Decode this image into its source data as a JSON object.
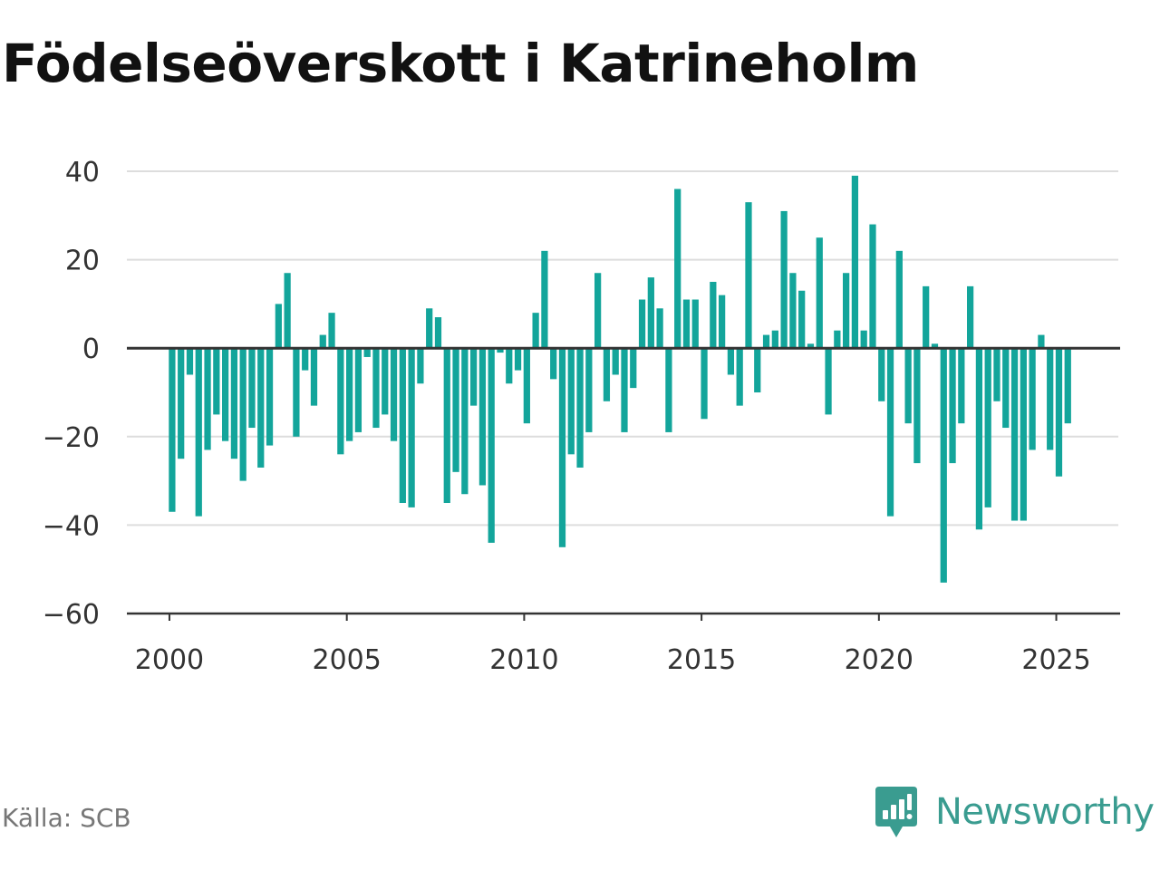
{
  "title": "Födelseöverskott i Katrineholm",
  "source": "Källa: SCB",
  "brand": {
    "name": "Newsworthy",
    "icon": "newsworthy-logo-icon",
    "color": "#3a9c90"
  },
  "chart_data": {
    "type": "bar",
    "title": "Födelseöverskott i Katrineholm",
    "xlabel": "",
    "ylabel": "",
    "ylim": [
      -60,
      40
    ],
    "xlim": [
      1998.8,
      2026.8
    ],
    "grid": true,
    "bar_color": "#13a59b",
    "y_ticks": [
      40,
      20,
      0,
      -20,
      -40,
      -60
    ],
    "y_tick_labels": [
      "40",
      "20",
      "0",
      "−20",
      "−40",
      "−60"
    ],
    "x_ticks": [
      2000,
      2005,
      2010,
      2015,
      2020,
      2025
    ],
    "x_tick_labels": [
      "2000",
      "2005",
      "2010",
      "2015",
      "2020",
      "2025"
    ],
    "series": [
      {
        "name": "",
        "x_start": "2000 kv1",
        "period": "quarter",
        "values": [
          -37,
          -25,
          -6,
          -38,
          -23,
          -15,
          -21,
          -25,
          -30,
          -18,
          -27,
          -22,
          10,
          17,
          -20,
          -5,
          -13,
          3,
          8,
          -24,
          -21,
          -19,
          -2,
          -18,
          -15,
          -21,
          -35,
          -36,
          -8,
          9,
          7,
          -35,
          -28,
          -33,
          -13,
          -31,
          -44,
          -1,
          -8,
          -5,
          -17,
          8,
          22,
          -7,
          -45,
          -24,
          -27,
          -19,
          17,
          -12,
          -6,
          -19,
          -9,
          11,
          16,
          9,
          -19,
          36,
          11,
          11,
          -16,
          15,
          12,
          -6,
          -13,
          33,
          -10,
          3,
          4,
          31,
          17,
          13,
          1,
          25,
          -15,
          4,
          17,
          39,
          4,
          28,
          -12,
          -38,
          22,
          -17,
          -26,
          14,
          1,
          -53,
          -26,
          -17,
          14,
          -41,
          -36,
          -12,
          -18,
          -39,
          -39,
          -23,
          3,
          -23,
          -29,
          -17
        ]
      }
    ]
  }
}
